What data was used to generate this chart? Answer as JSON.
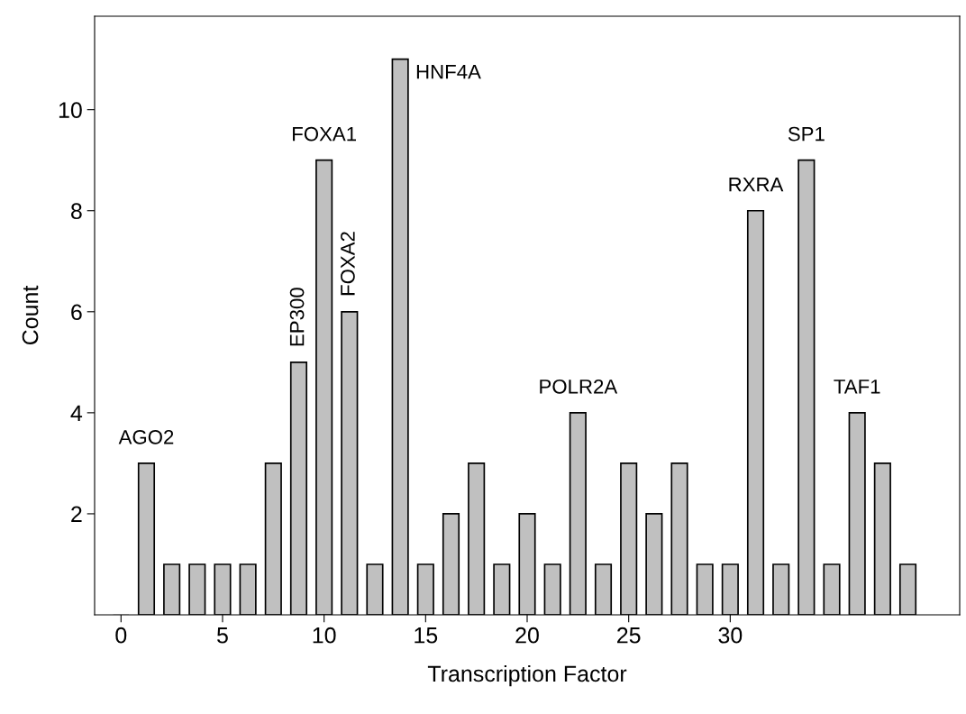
{
  "chart_data": {
    "type": "bar",
    "xlabel": "Transcription Factor",
    "ylabel": "Count",
    "x": [
      0,
      1.25,
      2.5,
      3.75,
      5,
      6.25,
      7.5,
      8.75,
      10,
      11.25,
      12.5,
      13.75,
      15,
      16.25,
      17.5,
      18.75,
      20,
      21.25,
      22.5,
      23.75,
      25,
      26.25,
      27.5,
      28.75,
      30,
      31.25,
      32.5,
      33.75,
      35,
      36.25,
      37.5,
      38.75
    ],
    "values": [
      0,
      3,
      1,
      1,
      1,
      1,
      3,
      5,
      9,
      6,
      1,
      11,
      1,
      2,
      3,
      1,
      2,
      1,
      4,
      1,
      3,
      2,
      3,
      1,
      1,
      8,
      1,
      9,
      1,
      4,
      3,
      1
    ],
    "color": "#c0c0c0",
    "xlim": [
      -1.3,
      41.3
    ],
    "xticks": [
      0,
      5,
      10,
      15,
      20,
      25,
      30
    ],
    "ylim": [
      0,
      11.85
    ],
    "yticks": [
      2,
      4,
      6,
      8,
      10
    ],
    "grid": false,
    "annotations": [
      {
        "text": "AGO2",
        "x": 1.25,
        "y": 3
      },
      {
        "text": "EP300",
        "x": 8.75,
        "y": 5
      },
      {
        "text": "FOXA1",
        "x": 10,
        "y": 9
      },
      {
        "text": "FOXA2",
        "x": 11.25,
        "y": 6
      },
      {
        "text": "HNF4A",
        "x": 13.75,
        "y": 11
      },
      {
        "text": "POLR2A",
        "x": 22.5,
        "y": 4
      },
      {
        "text": "RXRA",
        "x": 31.25,
        "y": 8
      },
      {
        "text": "SP1",
        "x": 33.75,
        "y": 9
      },
      {
        "text": "TAF1",
        "x": 36.25,
        "y": 4
      }
    ]
  }
}
